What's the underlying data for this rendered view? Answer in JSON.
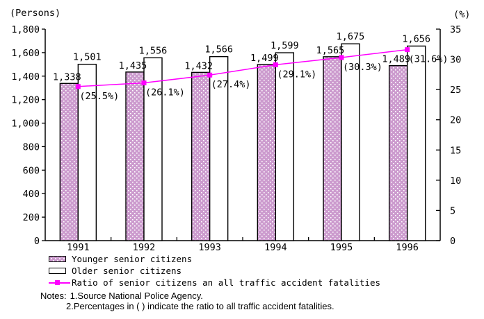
{
  "chart_data": {
    "type": "combo-bar-line",
    "categories": [
      "1991",
      "1992",
      "1993",
      "1994",
      "1995",
      "1996"
    ],
    "series": [
      {
        "name": "Younger senior citizens",
        "type": "bar",
        "axis": "left",
        "fill": "#CC9BCE",
        "pattern": "white-dots",
        "values": [
          1338,
          1435,
          1432,
          1499,
          1565,
          1489
        ],
        "value_labels": [
          "1,338",
          "1,435",
          "1,432",
          "1,499",
          "1,565",
          "1,489"
        ]
      },
      {
        "name": "Older senior citizens",
        "type": "bar",
        "axis": "left",
        "fill": "#FFFFFF",
        "values": [
          1501,
          1556,
          1566,
          1599,
          1675,
          1656
        ],
        "value_labels": [
          "1,501",
          "1,556",
          "1,566",
          "1,599",
          "1,675",
          "1,656"
        ]
      },
      {
        "name": "Ratio of senior citizens an all traffic accident fatalities",
        "type": "line",
        "axis": "right",
        "color": "#FF00FF",
        "marker": "square",
        "values": [
          25.5,
          26.1,
          27.4,
          29.1,
          30.3,
          31.6
        ],
        "value_labels": [
          "(25.5%)",
          "(26.1%)",
          "(27.4%)",
          "(29.1%)",
          "(30.3%)",
          "(31.6%)"
        ]
      }
    ],
    "left_axis": {
      "unit_label": "(Persons)",
      "min": 0,
      "max": 1800,
      "step": 200,
      "tick_labels": [
        "0",
        "200",
        "400",
        "600",
        "800",
        "1,000",
        "1,200",
        "1,400",
        "1,600",
        "1,800"
      ]
    },
    "right_axis": {
      "unit_label": "(%)",
      "min": 0,
      "max": 35,
      "step": 5,
      "tick_labels": [
        "0",
        "5",
        "10",
        "15",
        "20",
        "25",
        "30",
        "35"
      ]
    },
    "grid": false,
    "legend_position": "bottom-left"
  },
  "colors": {
    "axis_and_text": "#000000",
    "bar_border": "#000000",
    "background": "#FFFFFF"
  },
  "notes": {
    "label": "Notes:",
    "line1": "1.Source National Police Agency.",
    "line2": "2.Percentages in ( ) indicate the ratio to all traffic accident fatalities."
  }
}
